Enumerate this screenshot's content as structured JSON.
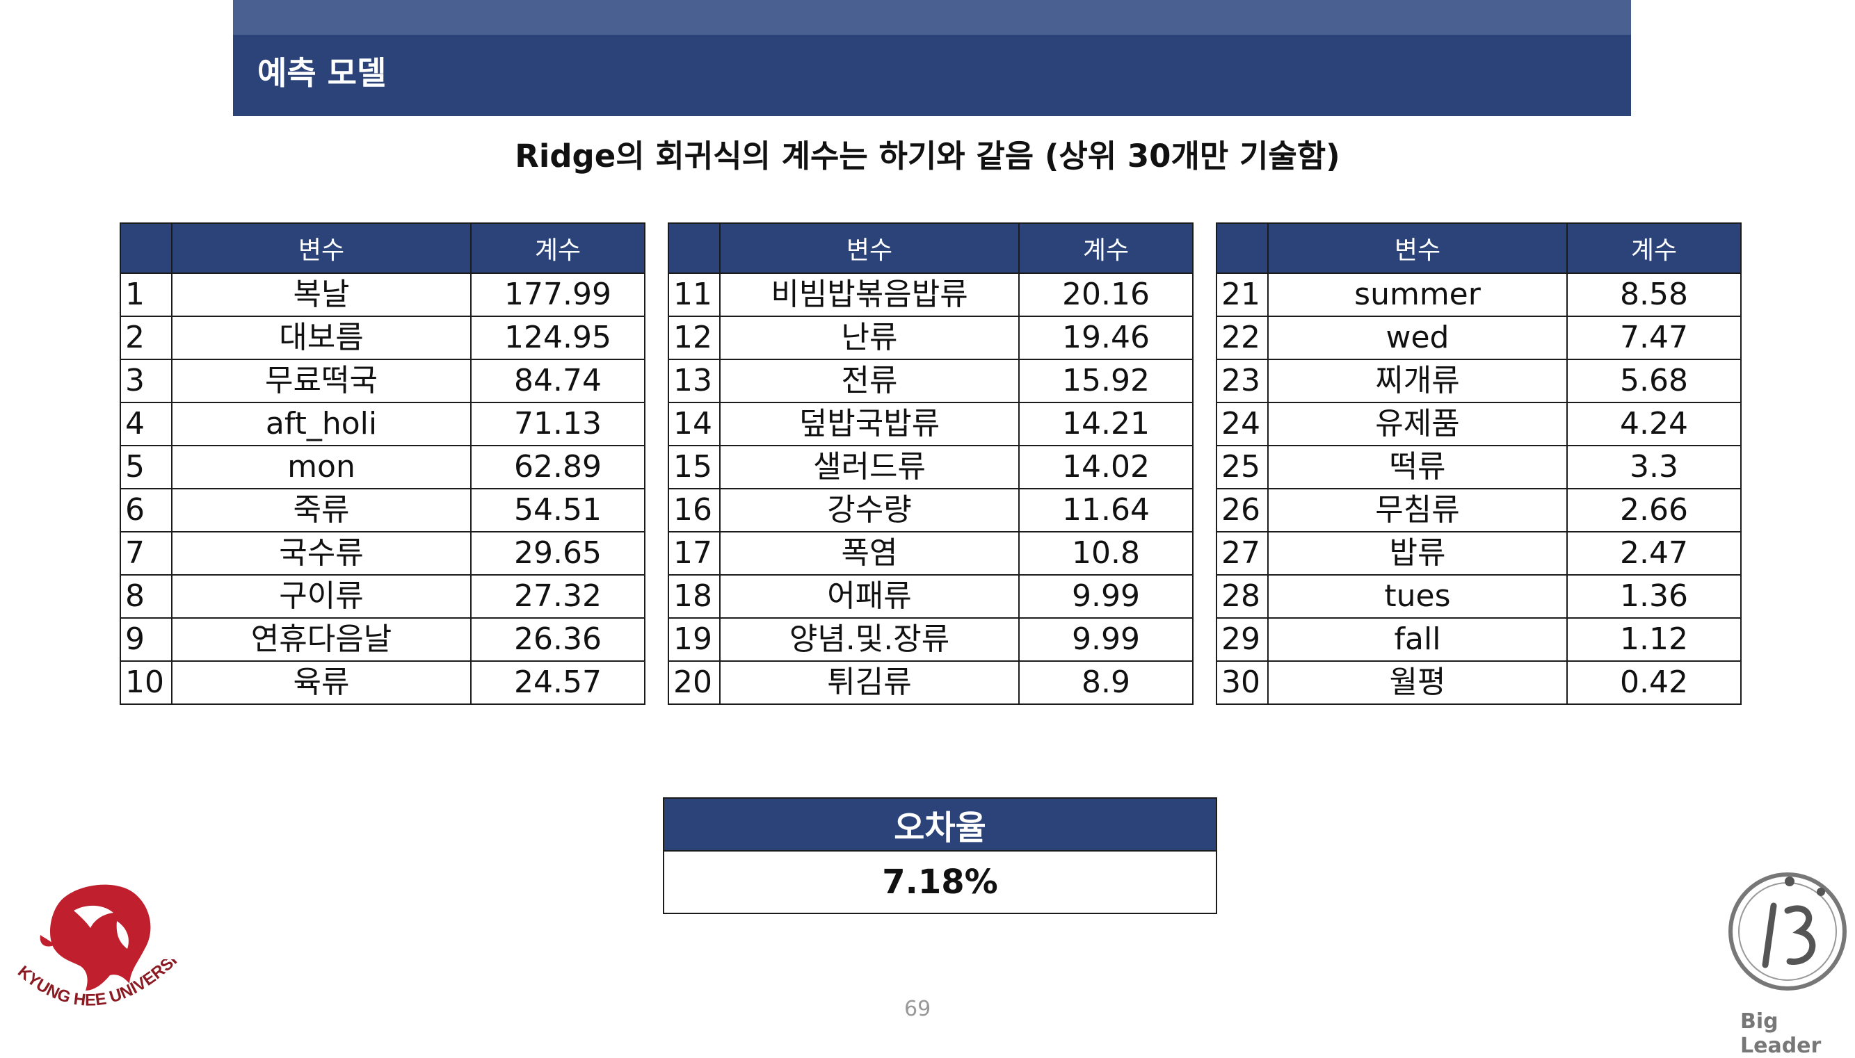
{
  "header": {
    "title": "예측 모델"
  },
  "subtitle": "Ridge의 회귀식의 계수는 하기와 같음 (상위 30개만 기술함)",
  "tables": [
    {
      "headers": {
        "variable": "변수",
        "coefficient": "계수"
      },
      "rows": [
        {
          "idx": "1",
          "var": "복날",
          "val": "177.99"
        },
        {
          "idx": "2",
          "var": "대보름",
          "val": "124.95"
        },
        {
          "idx": "3",
          "var": "무료떡국",
          "val": "84.74"
        },
        {
          "idx": "4",
          "var": "aft_holi",
          "val": "71.13"
        },
        {
          "idx": "5",
          "var": "mon",
          "val": "62.89"
        },
        {
          "idx": "6",
          "var": "죽류",
          "val": "54.51"
        },
        {
          "idx": "7",
          "var": "국수류",
          "val": "29.65"
        },
        {
          "idx": "8",
          "var": "구이류",
          "val": "27.32"
        },
        {
          "idx": "9",
          "var": "연휴다음날",
          "val": "26.36"
        },
        {
          "idx": "10",
          "var": "육류",
          "val": "24.57"
        }
      ]
    },
    {
      "headers": {
        "variable": "변수",
        "coefficient": "계수"
      },
      "rows": [
        {
          "idx": "11",
          "var": "비빔밥볶음밥류",
          "val": "20.16"
        },
        {
          "idx": "12",
          "var": "난류",
          "val": "19.46"
        },
        {
          "idx": "13",
          "var": "전류",
          "val": "15.92"
        },
        {
          "idx": "14",
          "var": "덮밥국밥류",
          "val": "14.21"
        },
        {
          "idx": "15",
          "var": "샐러드류",
          "val": "14.02"
        },
        {
          "idx": "16",
          "var": "강수량",
          "val": "11.64"
        },
        {
          "idx": "17",
          "var": "폭염",
          "val": "10.8"
        },
        {
          "idx": "18",
          "var": "어패류",
          "val": "9.99"
        },
        {
          "idx": "19",
          "var": "양념.및.장류",
          "val": "9.99"
        },
        {
          "idx": "20",
          "var": "튀김류",
          "val": "8.9"
        }
      ]
    },
    {
      "headers": {
        "variable": "변수",
        "coefficient": "계수"
      },
      "rows": [
        {
          "idx": "21",
          "var": "summer",
          "val": "8.58"
        },
        {
          "idx": "22",
          "var": "wed",
          "val": "7.47"
        },
        {
          "idx": "23",
          "var": "찌개류",
          "val": "5.68"
        },
        {
          "idx": "24",
          "var": "유제품",
          "val": "4.24"
        },
        {
          "idx": "25",
          "var": "떡류",
          "val": "3.3"
        },
        {
          "idx": "26",
          "var": "무침류",
          "val": "2.66"
        },
        {
          "idx": "27",
          "var": "밥류",
          "val": "2.47"
        },
        {
          "idx": "28",
          "var": "tues",
          "val": "1.36"
        },
        {
          "idx": "29",
          "var": "fall",
          "val": "1.12"
        },
        {
          "idx": "30",
          "var": "월평",
          "val": "0.42"
        }
      ]
    }
  ],
  "error_box": {
    "label": "오차율",
    "value": "7.18%"
  },
  "page_number": "69",
  "logos": {
    "left": {
      "name": "kyung-hee-university-logo",
      "text": "KYUNG HEE UNIVERSITY",
      "color": "#c0202e"
    },
    "right": {
      "name": "big-leader-logo",
      "text": "Big Leader",
      "color": "#777777"
    }
  },
  "colors": {
    "header_dark": "#2c4379",
    "header_light": "#4a6090"
  }
}
